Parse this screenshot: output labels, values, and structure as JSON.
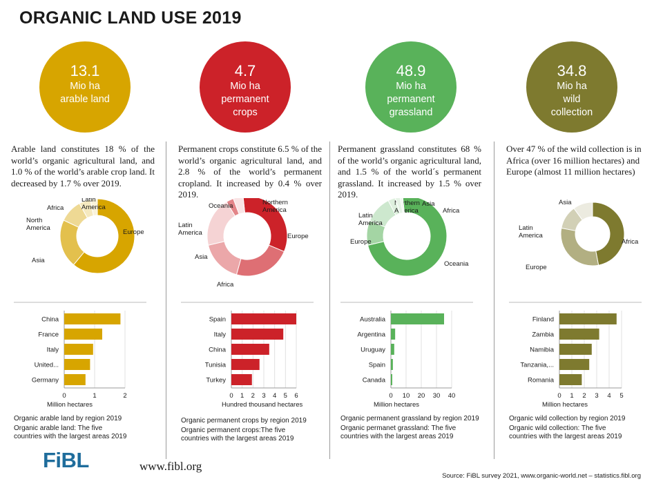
{
  "title": "ORGANIC LAND USE 2019",
  "footer": {
    "logo": "FiBL",
    "website": "www.fibl.org",
    "source": "Source: FiBL survey 2021, www.organic-world.net – statistics.fibl.org"
  },
  "colors": {
    "arable": "#d7a500",
    "crops": "#cc2229",
    "grassland": "#59b25a",
    "wild": "#7e7a2f"
  },
  "panels": [
    {
      "big": "13.1",
      "small": "Mio ha\narable land",
      "desc": "Arable land constitutes 18 % of the world’s organic agricultural land, and 1.0 % of the world’s arable crop land. It decreased by 1.7 % over 2019.",
      "donut_caption": "Organic arable land by region 2019",
      "bar_caption": "Organic arable land: The five\ncountries with the largest areas 2019"
    },
    {
      "big": "4.7",
      "small": "Mio ha\npermanent\ncrops",
      "desc": "Permanent crops constitute 6.5 % of the world’s organic agricultural land, and 2.8 % of the world’s permanent cropland. It increased by 0.4 % over 2019.",
      "donut_caption": "Organic permanent crops by region 2019",
      "bar_caption": "Organic  permanent crops:The five\ncountries with the largest areas 2019"
    },
    {
      "big": "48.9",
      "small": "Mio ha\npermanent\ngrassland",
      "desc": "Permanent grassland constitutes 68 % of the world’s organic agricultural land, and 1.5 % of the world´s permanent grassland. It increased by 1.5 % over 2019.",
      "donut_caption": "Organic permanent grassland by region 2019",
      "bar_caption": "Organic permanet grassland: The five\ncountries with the largest areas 2019"
    },
    {
      "big": "34.8",
      "small": "Mio ha\nwild\ncollection",
      "desc": "Over 47 % of the wild collection is in Africa (over 16 million hectares) and Europe (almost 11 million hectares)",
      "donut_caption": "Organic wild collection by region 2019",
      "bar_caption": "Organic wild collection: The five\ncountries with the largest areas 2019"
    }
  ],
  "chart_data": [
    {
      "type": "pie",
      "title": "Organic arable land by region 2019",
      "categories": [
        "Europe",
        "Asia",
        "North America",
        "Africa",
        "Latin America"
      ],
      "values": [
        61,
        21,
        10,
        5,
        3
      ]
    },
    {
      "type": "bar",
      "title": "Organic arable land: The five countries with the largest areas 2019",
      "orientation": "horizontal",
      "categories": [
        "China",
        "France",
        "Italy",
        "United...",
        "Germany"
      ],
      "values": [
        1.85,
        1.25,
        0.95,
        0.85,
        0.7
      ],
      "xlabel": "Million hectares",
      "xlim": [
        0,
        2
      ],
      "ticks": [
        0,
        1,
        2
      ]
    },
    {
      "type": "pie",
      "title": "Organic permanent crops by region 2019",
      "categories": [
        "Europe",
        "Africa",
        "Asia",
        "Latin America",
        "Oceania",
        "Northern America"
      ],
      "values": [
        33,
        23,
        17,
        20,
        3,
        4
      ]
    },
    {
      "type": "bar",
      "title": "Organic  permanent crops:The five countries with the largest areas 2019",
      "orientation": "horizontal",
      "categories": [
        "Spain",
        "Italy",
        "China",
        "Tunisia",
        "Turkey"
      ],
      "values": [
        6.0,
        4.8,
        3.5,
        2.6,
        1.9
      ],
      "xlabel": "Hundred thousand hectares",
      "xlim": [
        0,
        6
      ],
      "ticks": [
        0,
        1,
        2,
        3,
        4,
        5,
        6
      ]
    },
    {
      "type": "pie",
      "title": "Organic permanent grassland by region 2019",
      "categories": [
        "Oceania",
        "Europe",
        "Latin America",
        "Northern America",
        "Asia",
        "Africa"
      ],
      "values": [
        73,
        10,
        11,
        3,
        2,
        1
      ]
    },
    {
      "type": "bar",
      "title": "Organic permanet grassland: The five countries with the largest areas 2019",
      "orientation": "horizontal",
      "categories": [
        "Australia",
        "Argentina",
        "Uruguay",
        "Spain",
        "Canada"
      ],
      "values": [
        35,
        2.8,
        2.2,
        1.3,
        0.9
      ],
      "xlabel": "Million hectares",
      "xlim": [
        0,
        40
      ],
      "ticks": [
        0,
        10,
        20,
        30,
        40
      ]
    },
    {
      "type": "pie",
      "title": "Organic wild collection by region 2019",
      "categories": [
        "Africa",
        "Europe",
        "Latin America",
        "Asia"
      ],
      "values": [
        47,
        31,
        12,
        10
      ]
    },
    {
      "type": "bar",
      "title": "Organic wild collection: The five countries with the largest areas 2019",
      "orientation": "horizontal",
      "categories": [
        "Finland",
        "Zambia",
        "Namibia",
        "Tanzania,...",
        "Romania"
      ],
      "values": [
        4.6,
        3.2,
        2.6,
        2.4,
        1.8
      ],
      "xlabel": "Million hectares",
      "xlim": [
        0,
        5
      ],
      "ticks": [
        0,
        1,
        2,
        3,
        4,
        5
      ]
    }
  ]
}
